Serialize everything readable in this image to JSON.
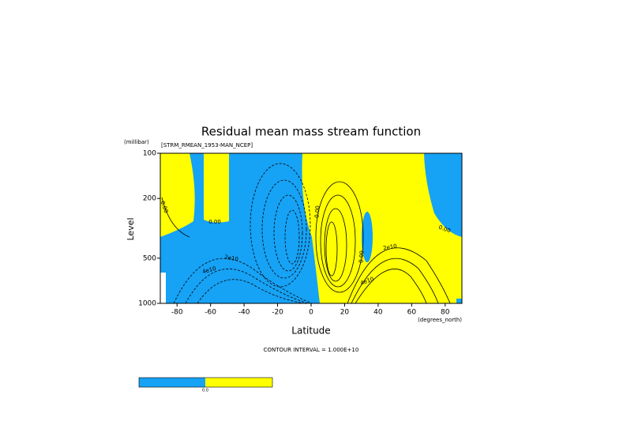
{
  "chart_data": {
    "type": "contour",
    "title": "Residual mean mass stream function",
    "subtitle": "[STRM_RMEAN_1953-MAN_NCEP]",
    "y_unit": "(millibar)",
    "ylabel": "Level",
    "xlabel": "Latitude",
    "x_unit": "(degrees_north)",
    "note": "CONTOUR INTERVAL = 1.000E+10",
    "xlim": [
      -90,
      90
    ],
    "xticks": [
      -80,
      -60,
      -40,
      -20,
      0,
      20,
      40,
      60,
      80
    ],
    "ylim": [
      1000,
      100
    ],
    "yticks": [
      100,
      200,
      500,
      1000
    ],
    "y_scale": "log",
    "negative_color": "#16a2f5",
    "positive_color": "#ffff00",
    "contour_labels": [
      "0.00",
      "0.00",
      "2e10",
      "4e10",
      "0.00",
      "2e10",
      "4e10",
      "0.00",
      "0.00"
    ],
    "colorbar_label": "0.0"
  }
}
